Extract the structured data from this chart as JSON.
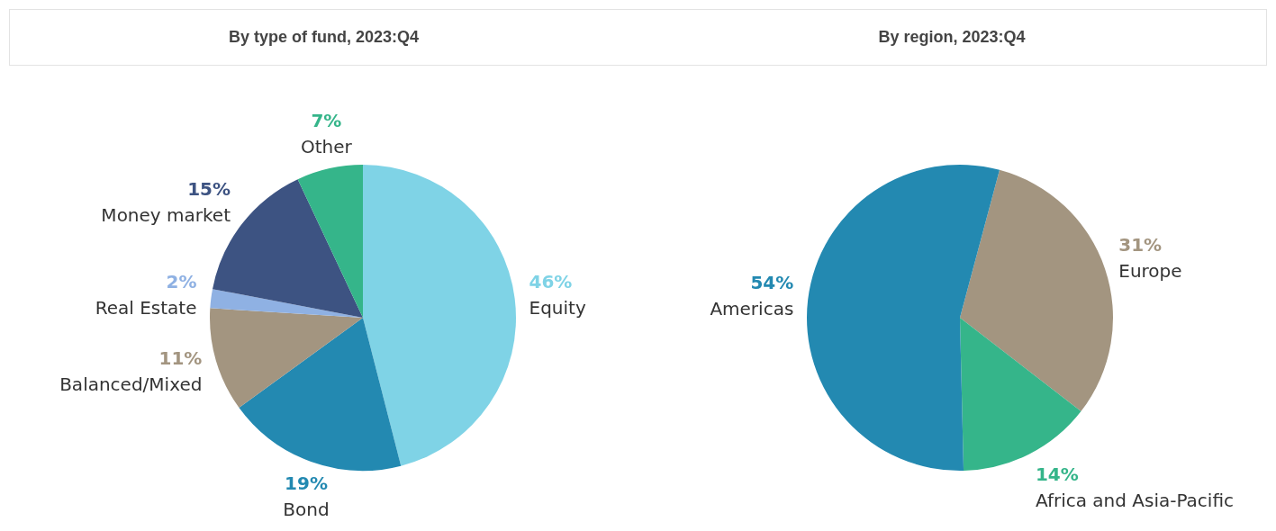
{
  "chart_data": [
    {
      "type": "pie",
      "title": "By type of fund, 2023:Q4",
      "categories": [
        "Equity",
        "Bond",
        "Balanced/Mixed",
        "Real Estate",
        "Money market",
        "Other"
      ],
      "values": [
        46,
        19,
        11,
        2,
        15,
        7
      ],
      "colors": [
        "#7fd3e6",
        "#2389b1",
        "#a39580",
        "#8fb1e3",
        "#3d5382",
        "#35b58a"
      ],
      "value_labels": [
        "46%",
        "19%",
        "11%",
        "2%",
        "15%",
        "7%"
      ],
      "legend": false
    },
    {
      "type": "pie",
      "title": "By region, 2023:Q4",
      "categories": [
        "Europe",
        "Africa and Asia-Pacific",
        "Americas"
      ],
      "values": [
        31,
        14,
        54
      ],
      "colors": [
        "#a39580",
        "#35b58a",
        "#2389b1"
      ],
      "value_labels": [
        "31%",
        "14%",
        "54%"
      ],
      "legend": false
    }
  ]
}
